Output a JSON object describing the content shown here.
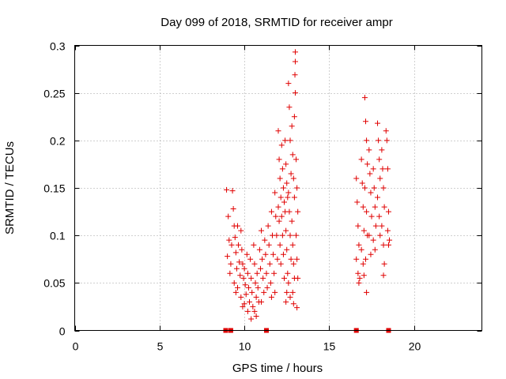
{
  "chart_data": {
    "type": "scatter",
    "title": "Day 099 of 2018, SRMTID for receiver ampr",
    "xlabel": "GPS time / hours",
    "ylabel": "SRMTID / TECUs",
    "xlim": [
      0,
      24
    ],
    "ylim": [
      0,
      0.3
    ],
    "xticks": [
      0,
      5,
      10,
      15,
      20
    ],
    "xtick_labels": [
      "0",
      "5",
      "10",
      "15",
      "20"
    ],
    "yticks": [
      0,
      0.05,
      0.1,
      0.15,
      0.2,
      0.25,
      0.3
    ],
    "ytick_labels": [
      "0",
      "0.05",
      "0.1",
      "0.15",
      "0.2",
      "0.25",
      "0.3"
    ],
    "grid": true,
    "point_color": "#e00000",
    "series": [
      {
        "name": "SRMTID",
        "marker": "plus",
        "points": [
          [
            8.95,
            0.148
          ],
          [
            9.05,
            0.12
          ],
          [
            9.1,
            0.095
          ],
          [
            9.0,
            0.078
          ],
          [
            9.15,
            0.06
          ],
          [
            9.3,
            0.147
          ],
          [
            9.35,
            0.128
          ],
          [
            9.4,
            0.11
          ],
          [
            9.25,
            0.09
          ],
          [
            9.2,
            0.07
          ],
          [
            9.45,
            0.098
          ],
          [
            9.5,
            0.082
          ],
          [
            9.55,
            0.065
          ],
          [
            9.4,
            0.05
          ],
          [
            9.5,
            0.04
          ],
          [
            9.6,
            0.11
          ],
          [
            9.65,
            0.09
          ],
          [
            9.7,
            0.072
          ],
          [
            9.75,
            0.058
          ],
          [
            9.6,
            0.045
          ],
          [
            9.8,
            0.105
          ],
          [
            9.85,
            0.085
          ],
          [
            9.9,
            0.07
          ],
          [
            9.95,
            0.055
          ],
          [
            9.8,
            0.035
          ],
          [
            9.9,
            0.025
          ],
          [
            10.0,
            0.065
          ],
          [
            10.05,
            0.048
          ],
          [
            10.1,
            0.038
          ],
          [
            10.0,
            0.028
          ],
          [
            10.15,
            0.08
          ],
          [
            10.2,
            0.06
          ],
          [
            10.25,
            0.045
          ],
          [
            10.3,
            0.03
          ],
          [
            10.2,
            0.02
          ],
          [
            10.35,
            0.075
          ],
          [
            10.4,
            0.055
          ],
          [
            10.45,
            0.04
          ],
          [
            10.5,
            0.025
          ],
          [
            10.4,
            0.012
          ],
          [
            10.55,
            0.09
          ],
          [
            10.6,
            0.07
          ],
          [
            10.65,
            0.05
          ],
          [
            10.7,
            0.035
          ],
          [
            10.6,
            0.02
          ],
          [
            10.75,
            0.06
          ],
          [
            10.8,
            0.045
          ],
          [
            10.85,
            0.03
          ],
          [
            10.7,
            0.015
          ],
          [
            10.9,
            0.085
          ],
          [
            10.95,
            0.065
          ],
          [
            11.0,
            0.105
          ],
          [
            11.05,
            0.075
          ],
          [
            11.1,
            0.055
          ],
          [
            11.15,
            0.04
          ],
          [
            11.0,
            0.03
          ],
          [
            11.2,
            0.095
          ],
          [
            11.25,
            0.08
          ],
          [
            11.3,
            0.06
          ],
          [
            11.35,
            0.045
          ],
          [
            11.4,
            0.11
          ],
          [
            11.45,
            0.09
          ],
          [
            11.5,
            0.07
          ],
          [
            11.55,
            0.05
          ],
          [
            11.6,
            0.125
          ],
          [
            11.65,
            0.1
          ],
          [
            11.7,
            0.08
          ],
          [
            11.75,
            0.06
          ],
          [
            11.8,
            0.145
          ],
          [
            11.85,
            0.12
          ],
          [
            11.9,
            0.1
          ],
          [
            11.95,
            0.075
          ],
          [
            11.6,
            0.035
          ],
          [
            11.8,
            0.04
          ],
          [
            12.0,
            0.21
          ],
          [
            12.05,
            0.18
          ],
          [
            12.1,
            0.16
          ],
          [
            12.15,
            0.14
          ],
          [
            12.0,
            0.13
          ],
          [
            12.05,
            0.115
          ],
          [
            12.1,
            0.09
          ],
          [
            12.15,
            0.07
          ],
          [
            12.2,
            0.195
          ],
          [
            12.25,
            0.17
          ],
          [
            12.3,
            0.15
          ],
          [
            12.35,
            0.135
          ],
          [
            12.2,
            0.12
          ],
          [
            12.25,
            0.1
          ],
          [
            12.3,
            0.08
          ],
          [
            12.35,
            0.055
          ],
          [
            12.4,
            0.2
          ],
          [
            12.45,
            0.175
          ],
          [
            12.5,
            0.155
          ],
          [
            12.55,
            0.14
          ],
          [
            12.4,
            0.125
          ],
          [
            12.45,
            0.105
          ],
          [
            12.5,
            0.085
          ],
          [
            12.55,
            0.06
          ],
          [
            12.5,
            0.04
          ],
          [
            12.45,
            0.03
          ],
          [
            12.6,
            0.26
          ],
          [
            12.65,
            0.235
          ],
          [
            12.7,
            0.2
          ],
          [
            12.75,
            0.165
          ],
          [
            12.6,
            0.145
          ],
          [
            12.65,
            0.125
          ],
          [
            12.7,
            0.1
          ],
          [
            12.75,
            0.075
          ],
          [
            12.6,
            0.05
          ],
          [
            12.7,
            0.035
          ],
          [
            12.8,
            0.215
          ],
          [
            12.85,
            0.185
          ],
          [
            12.9,
            0.16
          ],
          [
            12.95,
            0.14
          ],
          [
            12.8,
            0.115
          ],
          [
            12.85,
            0.09
          ],
          [
            12.9,
            0.07
          ],
          [
            12.95,
            0.055
          ],
          [
            12.85,
            0.04
          ],
          [
            12.9,
            0.028
          ],
          [
            13.0,
            0.293
          ],
          [
            13.0,
            0.283
          ],
          [
            12.98,
            0.269
          ],
          [
            13.0,
            0.25
          ],
          [
            12.95,
            0.225
          ],
          [
            13.05,
            0.18
          ],
          [
            13.1,
            0.15
          ],
          [
            13.15,
            0.125
          ],
          [
            13.05,
            0.1
          ],
          [
            13.1,
            0.075
          ],
          [
            13.15,
            0.055
          ],
          [
            13.1,
            0.024
          ],
          [
            16.6,
            0.16
          ],
          [
            16.65,
            0.135
          ],
          [
            16.7,
            0.11
          ],
          [
            16.75,
            0.09
          ],
          [
            16.6,
            0.075
          ],
          [
            16.7,
            0.06
          ],
          [
            16.8,
            0.055
          ],
          [
            16.75,
            0.05
          ],
          [
            16.9,
            0.18
          ],
          [
            16.95,
            0.155
          ],
          [
            17.0,
            0.13
          ],
          [
            17.05,
            0.105
          ],
          [
            16.9,
            0.085
          ],
          [
            17.0,
            0.07
          ],
          [
            17.05,
            0.058
          ],
          [
            17.1,
            0.245
          ],
          [
            17.15,
            0.22
          ],
          [
            17.2,
            0.2
          ],
          [
            17.25,
            0.175
          ],
          [
            17.1,
            0.15
          ],
          [
            17.2,
            0.125
          ],
          [
            17.25,
            0.1
          ],
          [
            17.15,
            0.075
          ],
          [
            17.2,
            0.04
          ],
          [
            17.35,
            0.19
          ],
          [
            17.4,
            0.165
          ],
          [
            17.45,
            0.145
          ],
          [
            17.5,
            0.12
          ],
          [
            17.35,
            0.1
          ],
          [
            17.45,
            0.08
          ],
          [
            17.6,
            0.17
          ],
          [
            17.65,
            0.15
          ],
          [
            17.7,
            0.13
          ],
          [
            17.75,
            0.11
          ],
          [
            17.6,
            0.095
          ],
          [
            17.7,
            0.085
          ],
          [
            17.85,
            0.218
          ],
          [
            17.9,
            0.2
          ],
          [
            17.95,
            0.18
          ],
          [
            18.0,
            0.16
          ],
          [
            17.85,
            0.14
          ],
          [
            17.95,
            0.12
          ],
          [
            18.0,
            0.1
          ],
          [
            18.1,
            0.19
          ],
          [
            18.15,
            0.17
          ],
          [
            18.2,
            0.15
          ],
          [
            18.25,
            0.13
          ],
          [
            18.1,
            0.11
          ],
          [
            18.2,
            0.09
          ],
          [
            18.25,
            0.07
          ],
          [
            18.2,
            0.058
          ],
          [
            18.35,
            0.21
          ],
          [
            18.4,
            0.2
          ],
          [
            18.45,
            0.17
          ],
          [
            18.5,
            0.125
          ],
          [
            18.45,
            0.105
          ],
          [
            18.5,
            0.09
          ],
          [
            18.55,
            0.095
          ]
        ]
      }
    ],
    "axis_markers": [
      8.9,
      9.2,
      11.3,
      16.6,
      18.5
    ]
  }
}
